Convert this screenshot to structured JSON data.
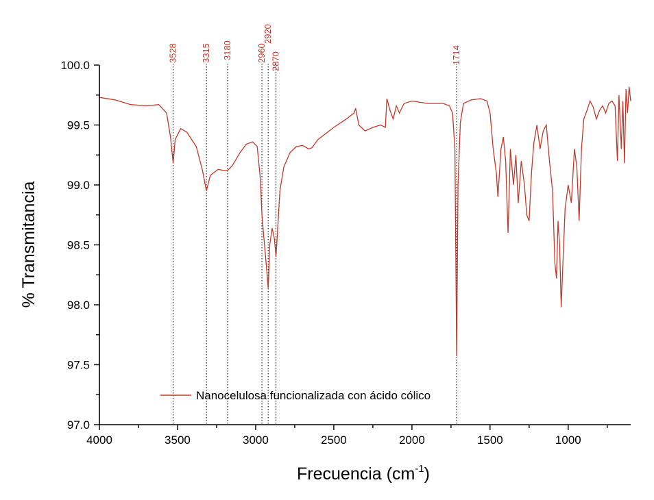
{
  "chart_data": {
    "type": "line",
    "xlabel": "Frecuencia (cm",
    "xlabel_sup": "-1",
    "xlabel_close": ")",
    "ylabel": "% Transmitancia",
    "xlim": [
      4000,
      600
    ],
    "ylim": [
      97.0,
      100.0
    ],
    "x_ticks": [
      4000,
      3500,
      3000,
      2500,
      2000,
      1500,
      1000
    ],
    "x_tick_labels": [
      "4000",
      "3500",
      "3000",
      "2500",
      "2000",
      "1500",
      "1000"
    ],
    "y_ticks": [
      97.0,
      97.5,
      98.0,
      98.5,
      99.0,
      99.5,
      100.0
    ],
    "y_tick_labels": [
      "97.0",
      "97.5",
      "98.0",
      "98.5",
      "99.0",
      "99.5",
      "100.0"
    ],
    "grid": false,
    "legend_position": "bottom-center",
    "series": [
      {
        "name": "Nanocelulosa funcionalizada con ácido cólico",
        "color": "#c0392b",
        "points": [
          [
            4000,
            99.73
          ],
          [
            3900,
            99.71
          ],
          [
            3800,
            99.67
          ],
          [
            3700,
            99.66
          ],
          [
            3620,
            99.67
          ],
          [
            3570,
            99.6
          ],
          [
            3545,
            99.4
          ],
          [
            3528,
            99.18
          ],
          [
            3515,
            99.38
          ],
          [
            3480,
            99.47
          ],
          [
            3440,
            99.44
          ],
          [
            3380,
            99.32
          ],
          [
            3340,
            99.12
          ],
          [
            3315,
            98.95
          ],
          [
            3290,
            99.08
          ],
          [
            3240,
            99.13
          ],
          [
            3200,
            99.12
          ],
          [
            3180,
            99.12
          ],
          [
            3150,
            99.16
          ],
          [
            3100,
            99.27
          ],
          [
            3060,
            99.34
          ],
          [
            3020,
            99.36
          ],
          [
            2990,
            99.32
          ],
          [
            2970,
            99.05
          ],
          [
            2960,
            98.75
          ],
          [
            2950,
            98.6
          ],
          [
            2940,
            98.45
          ],
          [
            2930,
            98.3
          ],
          [
            2920,
            98.14
          ],
          [
            2910,
            98.5
          ],
          [
            2895,
            98.64
          ],
          [
            2880,
            98.55
          ],
          [
            2870,
            98.4
          ],
          [
            2860,
            98.62
          ],
          [
            2845,
            98.95
          ],
          [
            2820,
            99.15
          ],
          [
            2780,
            99.27
          ],
          [
            2740,
            99.32
          ],
          [
            2700,
            99.33
          ],
          [
            2660,
            99.3
          ],
          [
            2640,
            99.31
          ],
          [
            2600,
            99.38
          ],
          [
            2500,
            99.48
          ],
          [
            2420,
            99.55
          ],
          [
            2370,
            99.6
          ],
          [
            2360,
            99.64
          ],
          [
            2340,
            99.5
          ],
          [
            2300,
            99.45
          ],
          [
            2250,
            99.48
          ],
          [
            2200,
            99.5
          ],
          [
            2170,
            99.48
          ],
          [
            2160,
            99.72
          ],
          [
            2140,
            99.62
          ],
          [
            2120,
            99.55
          ],
          [
            2100,
            99.66
          ],
          [
            2080,
            99.6
          ],
          [
            2050,
            99.68
          ],
          [
            2000,
            99.7
          ],
          [
            1900,
            99.68
          ],
          [
            1800,
            99.68
          ],
          [
            1760,
            99.66
          ],
          [
            1740,
            99.6
          ],
          [
            1725,
            99.3
          ],
          [
            1714,
            97.57
          ],
          [
            1705,
            99.0
          ],
          [
            1690,
            99.52
          ],
          [
            1670,
            99.68
          ],
          [
            1620,
            99.71
          ],
          [
            1560,
            99.72
          ],
          [
            1520,
            99.7
          ],
          [
            1500,
            99.6
          ],
          [
            1480,
            99.3
          ],
          [
            1460,
            99.1
          ],
          [
            1450,
            98.9
          ],
          [
            1430,
            99.3
          ],
          [
            1415,
            99.4
          ],
          [
            1400,
            99.2
          ],
          [
            1385,
            98.6
          ],
          [
            1370,
            99.3
          ],
          [
            1350,
            99.0
          ],
          [
            1335,
            99.25
          ],
          [
            1320,
            98.85
          ],
          [
            1300,
            99.2
          ],
          [
            1280,
            99.0
          ],
          [
            1265,
            98.75
          ],
          [
            1250,
            98.7
          ],
          [
            1235,
            99.1
          ],
          [
            1220,
            99.35
          ],
          [
            1200,
            99.5
          ],
          [
            1180,
            99.3
          ],
          [
            1160,
            99.45
          ],
          [
            1140,
            99.5
          ],
          [
            1120,
            99.2
          ],
          [
            1100,
            98.95
          ],
          [
            1085,
            98.35
          ],
          [
            1075,
            98.22
          ],
          [
            1065,
            98.7
          ],
          [
            1055,
            98.5
          ],
          [
            1045,
            97.98
          ],
          [
            1035,
            98.3
          ],
          [
            1020,
            98.8
          ],
          [
            1000,
            99.0
          ],
          [
            980,
            98.85
          ],
          [
            960,
            99.3
          ],
          [
            945,
            99.15
          ],
          [
            930,
            98.7
          ],
          [
            915,
            99.3
          ],
          [
            900,
            99.55
          ],
          [
            880,
            99.62
          ],
          [
            860,
            99.7
          ],
          [
            840,
            99.65
          ],
          [
            820,
            99.55
          ],
          [
            800,
            99.62
          ],
          [
            780,
            99.66
          ],
          [
            760,
            99.6
          ],
          [
            740,
            99.68
          ],
          [
            720,
            99.7
          ],
          [
            700,
            99.66
          ],
          [
            685,
            99.2
          ],
          [
            675,
            99.75
          ],
          [
            660,
            99.3
          ],
          [
            650,
            99.7
          ],
          [
            640,
            99.18
          ],
          [
            630,
            99.8
          ],
          [
            620,
            99.6
          ],
          [
            610,
            99.82
          ],
          [
            600,
            99.7
          ]
        ]
      }
    ],
    "peaks": [
      {
        "x": 3528,
        "label": "3528"
      },
      {
        "x": 3315,
        "label": "3315"
      },
      {
        "x": 3180,
        "label": "3180"
      },
      {
        "x": 2960,
        "label": "2960"
      },
      {
        "x": 2920,
        "label": "2920"
      },
      {
        "x": 2870,
        "label": "2870"
      },
      {
        "x": 1714,
        "label": "1714"
      }
    ],
    "legend": {
      "label": "Nanocelulosa funcionalizada con ácido cólico"
    }
  }
}
